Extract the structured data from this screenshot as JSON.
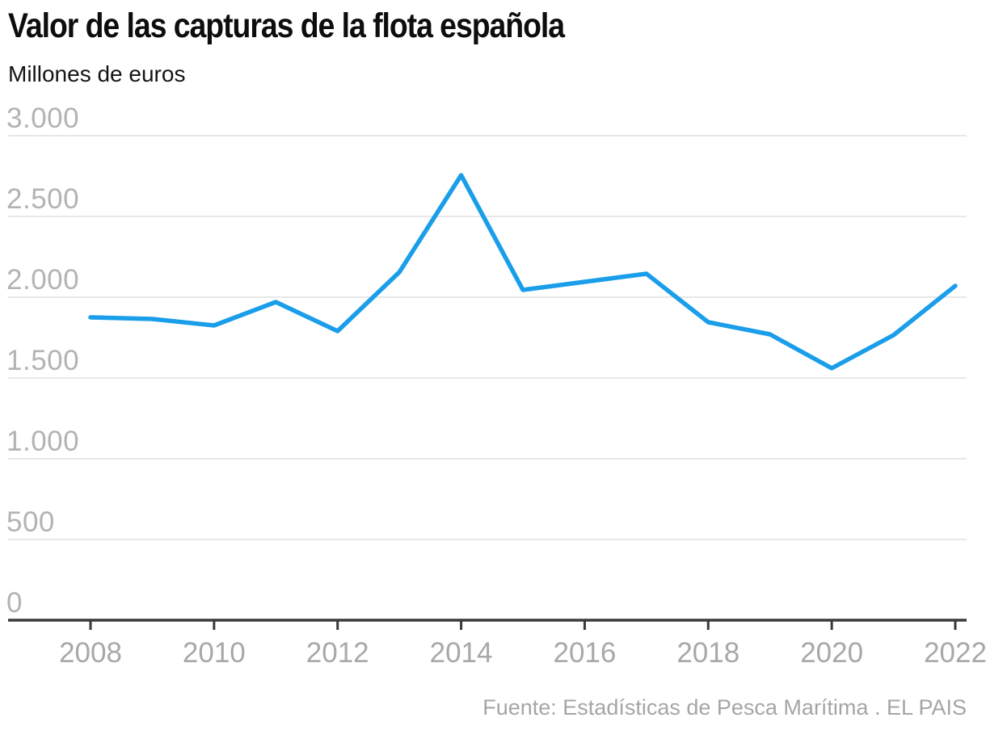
{
  "header": {
    "title": "Valor de las capturas de la flota española",
    "subtitle": "Millones de euros"
  },
  "footer": {
    "source": "Fuente: Estadísticas de Pesca Marítima . EL PAIS"
  },
  "colors": {
    "line": "#1a9eea",
    "grid": "#e8e8e8",
    "axis": "#3a3a3a",
    "y_label": "#b3b3b3",
    "x_label": "#a8a8a8"
  },
  "chart_data": {
    "type": "line",
    "title": "Valor de las capturas de la flota española",
    "ylabel": "Millones de euros",
    "x": [
      2008,
      2009,
      2010,
      2011,
      2012,
      2013,
      2014,
      2015,
      2016,
      2017,
      2018,
      2019,
      2020,
      2021,
      2022
    ],
    "series": [
      {
        "name": "Valor de las capturas (millones de euros)",
        "values": [
          1875,
          1865,
          1825,
          1970,
          1790,
          2155,
          2755,
          2045,
          2095,
          2145,
          1845,
          1770,
          1560,
          1765,
          2070
        ]
      }
    ],
    "xlim": [
      2008,
      2022
    ],
    "ylim": [
      0,
      3000
    ],
    "y_ticks": [
      0,
      500,
      1000,
      1500,
      2000,
      2500,
      3000
    ],
    "y_tick_labels": [
      "0",
      "500",
      "1.000",
      "1.500",
      "2.000",
      "2.500",
      "3.000"
    ],
    "x_ticks": [
      2008,
      2010,
      2012,
      2014,
      2016,
      2018,
      2020,
      2022
    ],
    "x_tick_labels": [
      "2008",
      "2010",
      "2012",
      "2014",
      "2016",
      "2018",
      "2020",
      "2022"
    ],
    "grid": "horizontal-only",
    "legend": "none",
    "source": "Fuente: Estadísticas de Pesca Marítima . EL PAIS"
  }
}
